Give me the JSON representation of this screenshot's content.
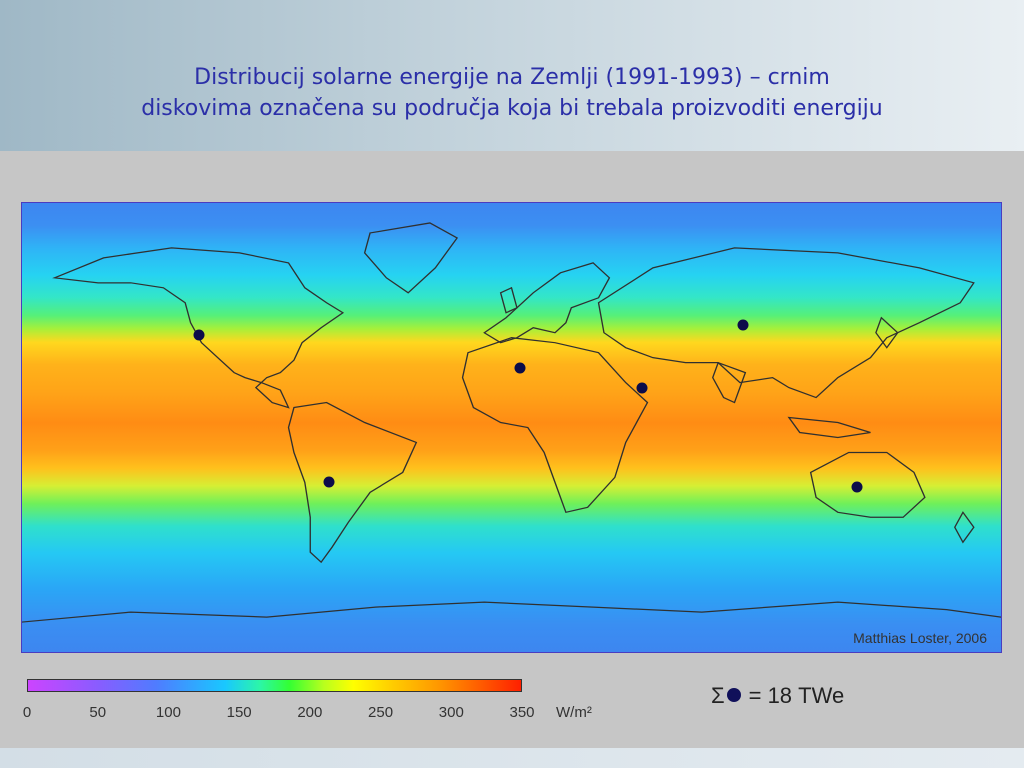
{
  "title": {
    "line1": "Distribucij solarne energije na Zemlji (1991-1993) – crnim",
    "line2": "diskovima označena su područja koja bi trebala proizvoditi energiju"
  },
  "map": {
    "credit": "Matthias Loster, 2006",
    "land_color": "#303030",
    "site_color": "#0c0c4a",
    "sites": [
      {
        "name": "north-america",
        "lon": -115,
        "lat": 37
      },
      {
        "name": "south-america",
        "lon": -67,
        "lat": -22
      },
      {
        "name": "north-africa",
        "lon": 3,
        "lat": 24
      },
      {
        "name": "arabia",
        "lon": 48,
        "lat": 16
      },
      {
        "name": "central-asia",
        "lon": 85,
        "lat": 41
      },
      {
        "name": "australia",
        "lon": 127,
        "lat": -24
      }
    ]
  },
  "colorbar": {
    "ticks": [
      "0",
      "50",
      "100",
      "150",
      "200",
      "250",
      "300",
      "350"
    ],
    "unit": "W/m²"
  },
  "summary": {
    "sigma": "Σ",
    "value": "= 18 TWe"
  }
}
